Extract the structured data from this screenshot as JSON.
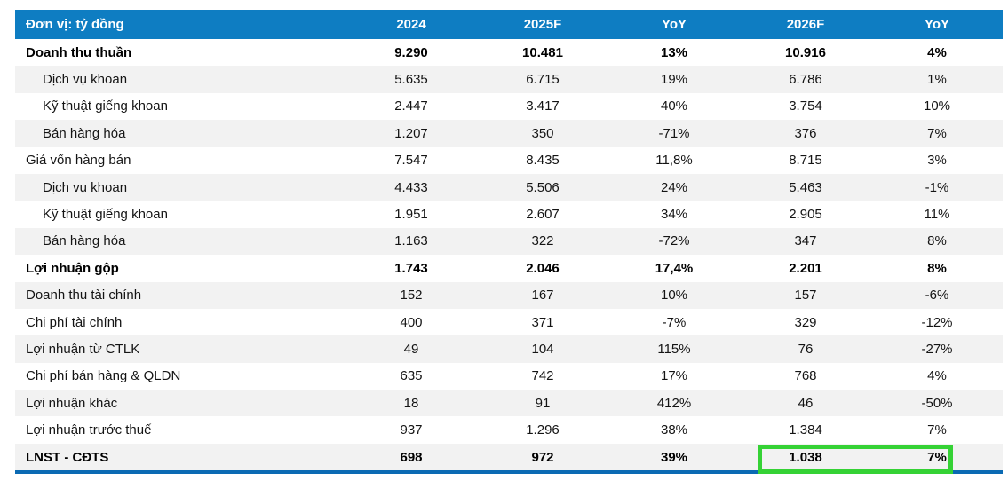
{
  "table": {
    "unit_label": "Đơn vị: tỷ đồng",
    "columns": [
      "2024",
      "2025F",
      "YoY",
      "2026F",
      "YoY"
    ],
    "rows": [
      {
        "label": "Doanh thu thuần",
        "bold": true,
        "indent": false,
        "values": [
          "9.290",
          "10.481",
          "13%",
          "10.916",
          "4%"
        ]
      },
      {
        "label": "Dịch vụ khoan",
        "bold": false,
        "indent": true,
        "values": [
          "5.635",
          "6.715",
          "19%",
          "6.786",
          "1%"
        ]
      },
      {
        "label": "Kỹ thuật giếng khoan",
        "bold": false,
        "indent": true,
        "values": [
          "2.447",
          "3.417",
          "40%",
          "3.754",
          "10%"
        ]
      },
      {
        "label": "Bán hàng hóa",
        "bold": false,
        "indent": true,
        "values": [
          "1.207",
          "350",
          "-71%",
          "376",
          "7%"
        ]
      },
      {
        "label": "Giá vốn hàng bán",
        "bold": false,
        "indent": false,
        "values": [
          "7.547",
          "8.435",
          "11,8%",
          "8.715",
          "3%"
        ]
      },
      {
        "label": "Dịch vụ khoan",
        "bold": false,
        "indent": true,
        "values": [
          "4.433",
          "5.506",
          "24%",
          "5.463",
          "-1%"
        ]
      },
      {
        "label": "Kỹ thuật giếng khoan",
        "bold": false,
        "indent": true,
        "values": [
          "1.951",
          "2.607",
          "34%",
          "2.905",
          "11%"
        ]
      },
      {
        "label": "Bán hàng hóa",
        "bold": false,
        "indent": true,
        "values": [
          "1.163",
          "322",
          "-72%",
          "347",
          "8%"
        ]
      },
      {
        "label": "Lợi nhuận gộp",
        "bold": true,
        "indent": false,
        "values": [
          "1.743",
          "2.046",
          "17,4%",
          "2.201",
          "8%"
        ]
      },
      {
        "label": "Doanh thu tài chính",
        "bold": false,
        "indent": false,
        "values": [
          "152",
          "167",
          "10%",
          "157",
          "-6%"
        ]
      },
      {
        "label": "Chi phí tài chính",
        "bold": false,
        "indent": false,
        "values": [
          "400",
          "371",
          "-7%",
          "329",
          "-12%"
        ]
      },
      {
        "label": "Lợi nhuận từ CTLK",
        "bold": false,
        "indent": false,
        "values": [
          "49",
          "104",
          "115%",
          "76",
          "-27%"
        ]
      },
      {
        "label": "Chi phí bán hàng & QLDN",
        "bold": false,
        "indent": false,
        "values": [
          "635",
          "742",
          "17%",
          "768",
          "4%"
        ]
      },
      {
        "label": "Lợi nhuận khác",
        "bold": false,
        "indent": false,
        "values": [
          "18",
          "91",
          "412%",
          "46",
          "-50%"
        ]
      },
      {
        "label": "Lợi nhuận trước thuế",
        "bold": false,
        "indent": false,
        "values": [
          "937",
          "1.296",
          "38%",
          "1.384",
          "7%"
        ]
      },
      {
        "label": "LNST - CĐTS",
        "bold": true,
        "indent": false,
        "values": [
          "698",
          "972",
          "39%",
          "1.038",
          "7%"
        ]
      }
    ],
    "highlight": {
      "row_label": "LNST - CĐTS",
      "highlighted_columns": [
        "2026F",
        "YoY"
      ],
      "highlighted_values": [
        "1.038",
        "7%"
      ]
    }
  },
  "colors": {
    "header_bg": "#0e7dc2",
    "header_text": "#ffffff",
    "row_alt_bg": "#f2f2f2",
    "body_text": "#141414",
    "bottom_border": "#0b6ab3",
    "highlight_border": "#35d235"
  }
}
